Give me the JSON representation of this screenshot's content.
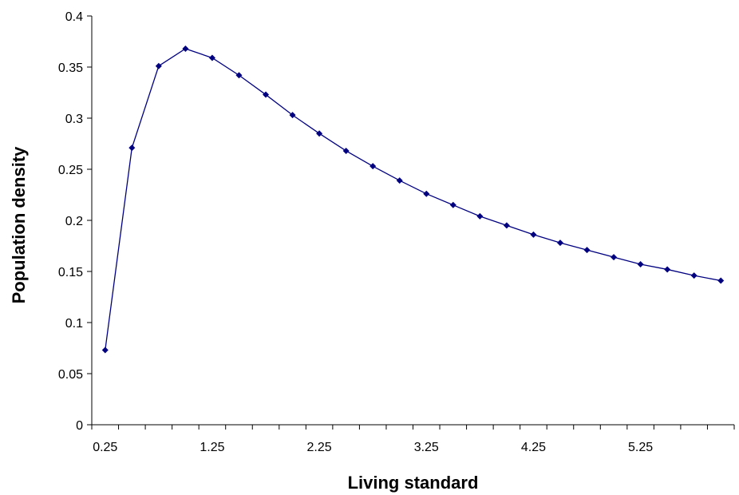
{
  "chart_data": {
    "type": "line",
    "xlabel": "Living standard",
    "ylabel": "Population density",
    "xlim": [
      0.125,
      6.125
    ],
    "ylim": [
      0,
      0.4
    ],
    "x_ticks": [
      "0.25",
      "1.25",
      "2.25",
      "3.25",
      "4.25",
      "5.25"
    ],
    "y_ticks": [
      "0",
      "0.05",
      "0.1",
      "0.15",
      "0.2",
      "0.25",
      "0.3",
      "0.35",
      "0.4"
    ],
    "grid": false,
    "legend": "none",
    "series": [
      {
        "color": "#000080",
        "marker": "diamond",
        "points": [
          {
            "x": 0.25,
            "y": 0.073
          },
          {
            "x": 0.5,
            "y": 0.271
          },
          {
            "x": 0.75,
            "y": 0.351
          },
          {
            "x": 1.0,
            "y": 0.368
          },
          {
            "x": 1.25,
            "y": 0.359
          },
          {
            "x": 1.5,
            "y": 0.342
          },
          {
            "x": 1.75,
            "y": 0.323
          },
          {
            "x": 2.0,
            "y": 0.303
          },
          {
            "x": 2.25,
            "y": 0.285
          },
          {
            "x": 2.5,
            "y": 0.268
          },
          {
            "x": 2.75,
            "y": 0.253
          },
          {
            "x": 3.0,
            "y": 0.239
          },
          {
            "x": 3.25,
            "y": 0.226
          },
          {
            "x": 3.5,
            "y": 0.215
          },
          {
            "x": 3.75,
            "y": 0.204
          },
          {
            "x": 4.0,
            "y": 0.195
          },
          {
            "x": 4.25,
            "y": 0.186
          },
          {
            "x": 4.5,
            "y": 0.178
          },
          {
            "x": 4.75,
            "y": 0.171
          },
          {
            "x": 5.0,
            "y": 0.164
          },
          {
            "x": 5.25,
            "y": 0.157
          },
          {
            "x": 5.5,
            "y": 0.152
          },
          {
            "x": 5.75,
            "y": 0.146
          },
          {
            "x": 6.0,
            "y": 0.141
          }
        ]
      }
    ]
  }
}
